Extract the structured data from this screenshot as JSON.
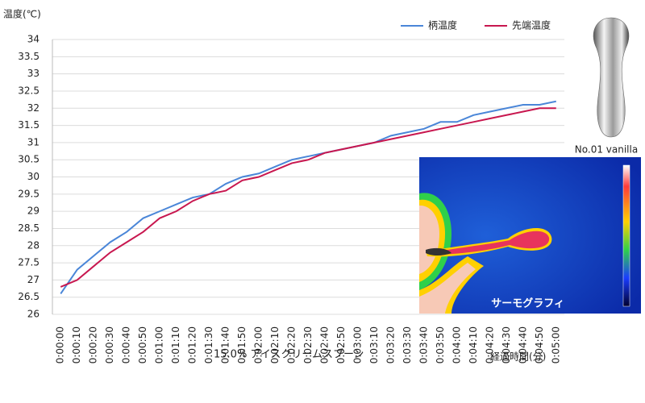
{
  "chart_data": {
    "type": "line",
    "y_label": "温度(℃)",
    "x_label": "経過時間(分)",
    "subtitle": "15.0% アイスクリームスプーン",
    "product_label": "No.01 vanilla",
    "thermo_label": "サーモグラフィ",
    "categories": [
      "0:00:00",
      "0:00:10",
      "0:00:20",
      "0:00:30",
      "0:00:40",
      "0:00:50",
      "0:01:00",
      "0:01:10",
      "0:01:20",
      "0:01:30",
      "0:01:40",
      "0:01:50",
      "0:02:00",
      "0:02:10",
      "0:02:20",
      "0:02:30",
      "0:02:40",
      "0:02:50",
      "0:03:00",
      "0:03:10",
      "0:03:20",
      "0:03:30",
      "0:03:40",
      "0:03:50",
      "0:04:00",
      "0:04:10",
      "0:04:20",
      "0:04:30",
      "0:04:40",
      "0:04:50",
      "0:05:00"
    ],
    "series": [
      {
        "name": "柄温度",
        "color": "#4a86d8",
        "values": [
          26.6,
          27.3,
          27.7,
          28.1,
          28.4,
          28.8,
          29.0,
          29.2,
          29.4,
          29.5,
          29.8,
          30.0,
          30.1,
          30.3,
          30.5,
          30.6,
          30.7,
          30.8,
          30.9,
          31.0,
          31.2,
          31.3,
          31.4,
          31.6,
          31.6,
          31.8,
          31.9,
          32.0,
          32.1,
          32.1,
          32.2
        ]
      },
      {
        "name": "先端温度",
        "color": "#c8174f",
        "values": [
          26.8,
          27.0,
          27.4,
          27.8,
          28.1,
          28.4,
          28.8,
          29.0,
          29.3,
          29.5,
          29.6,
          29.9,
          30.0,
          30.2,
          30.4,
          30.5,
          30.7,
          30.8,
          30.9,
          31.0,
          31.1,
          31.2,
          31.3,
          31.4,
          31.5,
          31.6,
          31.7,
          31.8,
          31.9,
          32.0,
          32.0
        ]
      }
    ],
    "ylim": [
      26,
      34
    ],
    "yticks": [
      26,
      26.5,
      27,
      27.5,
      28,
      28.5,
      29,
      29.5,
      30,
      30.5,
      31,
      31.5,
      32,
      32.5,
      33,
      33.5,
      34
    ],
    "grid": true
  }
}
